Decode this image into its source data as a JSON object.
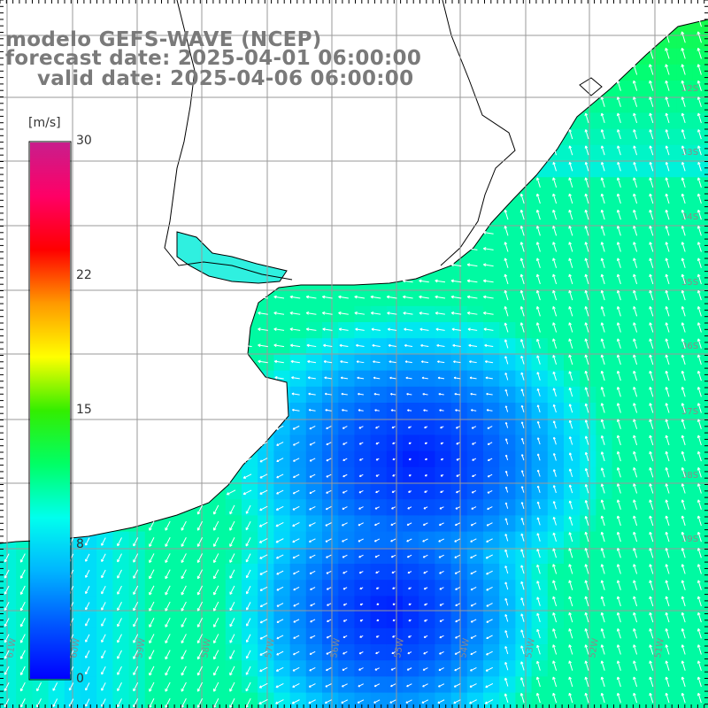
{
  "title": {
    "line1": "modelo GEFS-WAVE (NCEP)",
    "line2": "forecast date: 2025-04-01 06:00:00",
    "line3": "valid date: 2025-04-06 06:00:00"
  },
  "colorbar": {
    "unit": "[m/s]",
    "min": 0,
    "max": 30,
    "ticks": [
      "30",
      "22",
      "15",
      "8",
      "0"
    ],
    "tick_values": [
      30,
      22,
      15,
      8,
      0
    ],
    "colors": [
      "#0000ff",
      "#0055ff",
      "#00b4ff",
      "#00ffee",
      "#00ff66",
      "#33ee00",
      "#ffff00",
      "#ff9900",
      "#ff0000",
      "#ff0066",
      "#c81e8c"
    ]
  },
  "map": {
    "land_color": "#ffffff",
    "coast_color": "#000000",
    "grid_color": "#9a9a9a",
    "lon_labels": [
      "61W",
      "60W",
      "59W",
      "58W",
      "57W",
      "56W",
      "55W",
      "54W",
      "53W",
      "52W",
      "51W"
    ],
    "lat_labels": [
      "32S",
      "33S",
      "34S",
      "35S",
      "36S",
      "37S",
      "38S",
      "39S"
    ]
  }
}
